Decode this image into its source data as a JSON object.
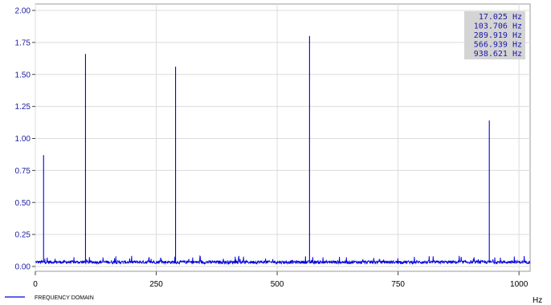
{
  "chart_data": {
    "type": "line",
    "xlabel": "",
    "ylabel": "",
    "x_unit": "Hz",
    "xlim": [
      0,
      1023
    ],
    "ylim": [
      0,
      2.0
    ],
    "x_ticks": [
      0,
      250,
      500,
      750,
      1000
    ],
    "x_tick_labels": [
      "0",
      "250",
      "500",
      "750",
      "1000"
    ],
    "y_ticks": [
      0,
      0.25,
      0.5,
      0.75,
      1.0,
      1.25,
      1.5,
      1.75,
      2.0
    ],
    "y_tick_labels": [
      "0.00",
      "0.25",
      "0.50",
      "0.75",
      "1.00",
      "1.25",
      "1.50",
      "1.75",
      "2.00"
    ],
    "grid": true,
    "legend_position": "bottom-left",
    "series": [
      {
        "name": "FREQUENCY DOMAIN",
        "color": "#0000dd",
        "noise_floor": 0.04,
        "peaks": [
          {
            "x": 17.025,
            "y": 0.87
          },
          {
            "x": 103.706,
            "y": 1.66
          },
          {
            "x": 289.919,
            "y": 1.56
          },
          {
            "x": 566.939,
            "y": 1.8
          },
          {
            "x": 938.621,
            "y": 1.14
          }
        ]
      }
    ],
    "peak_labels": [
      "17.025 Hz",
      "103.706 Hz",
      "289.919 Hz",
      "566.939 Hz",
      "938.621 Hz"
    ]
  }
}
